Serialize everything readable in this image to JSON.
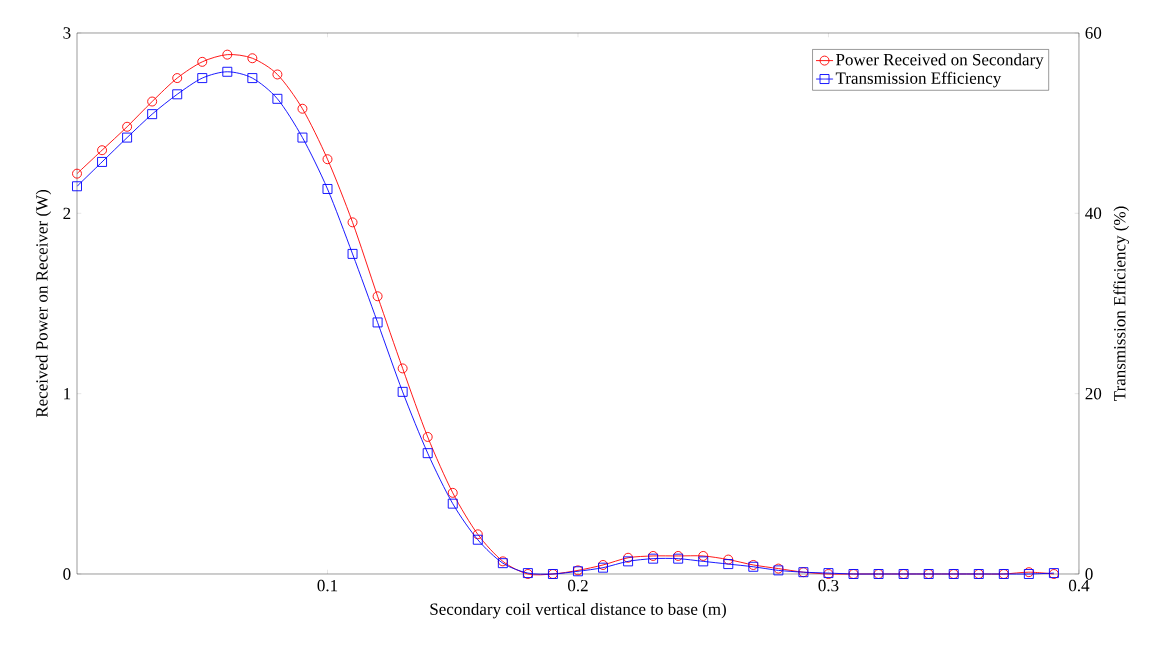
{
  "chart_data": {
    "type": "line",
    "xlabel": "Secondary coil vertical distance to base (m)",
    "ylabel": "Received Power on Receiver (W)",
    "y2label": "Transmission Efficiency (%)",
    "x": [
      0,
      0.01,
      0.02,
      0.03,
      0.04,
      0.05,
      0.06,
      0.07,
      0.08,
      0.09,
      0.1,
      0.11,
      0.12,
      0.13,
      0.14,
      0.15,
      0.16,
      0.17,
      0.18,
      0.19,
      0.2,
      0.21,
      0.22,
      0.23,
      0.24,
      0.25,
      0.26,
      0.27,
      0.28,
      0.29,
      0.3,
      0.31,
      0.32,
      0.33,
      0.34,
      0.35,
      0.36,
      0.37,
      0.38,
      0.39
    ],
    "series": [
      {
        "name": "Power Received on Secondary",
        "color": "#ff0000",
        "marker": "circle",
        "values": [
          2.22,
          2.35,
          2.48,
          2.62,
          2.75,
          2.84,
          2.88,
          2.86,
          2.77,
          2.58,
          2.3,
          1.95,
          1.54,
          1.14,
          0.76,
          0.45,
          0.22,
          0.07,
          0.0,
          0.0,
          0.02,
          0.05,
          0.09,
          0.1,
          0.1,
          0.1,
          0.08,
          0.05,
          0.03,
          0.01,
          0.0,
          0.0,
          0.0,
          0.0,
          0.0,
          0.0,
          0.0,
          0.0,
          0.01,
          0.0
        ]
      },
      {
        "name": "Transmission Efficiency",
        "color": "#0000ff",
        "marker": "square",
        "axis": "y2",
        "values": [
          43.0,
          45.7,
          48.4,
          51.0,
          53.2,
          55.0,
          55.7,
          55.0,
          52.7,
          48.4,
          42.7,
          35.5,
          27.9,
          20.2,
          13.4,
          7.8,
          3.8,
          1.2,
          0.1,
          0,
          0.3,
          0.7,
          1.4,
          1.7,
          1.7,
          1.4,
          1.1,
          0.8,
          0.4,
          0.2,
          0.1,
          0,
          0,
          0,
          0,
          0,
          0,
          0,
          0,
          0.1
        ]
      }
    ],
    "xlim": [
      0,
      0.4
    ],
    "xticks": [
      0.1,
      0.2,
      0.3,
      0.4
    ],
    "ylim": [
      0,
      3
    ],
    "yticks": [
      0,
      1,
      2,
      3
    ],
    "y2lim": [
      0,
      60
    ],
    "y2ticks": [
      0,
      20,
      40,
      60
    ],
    "grid": false,
    "legend": "top right"
  }
}
